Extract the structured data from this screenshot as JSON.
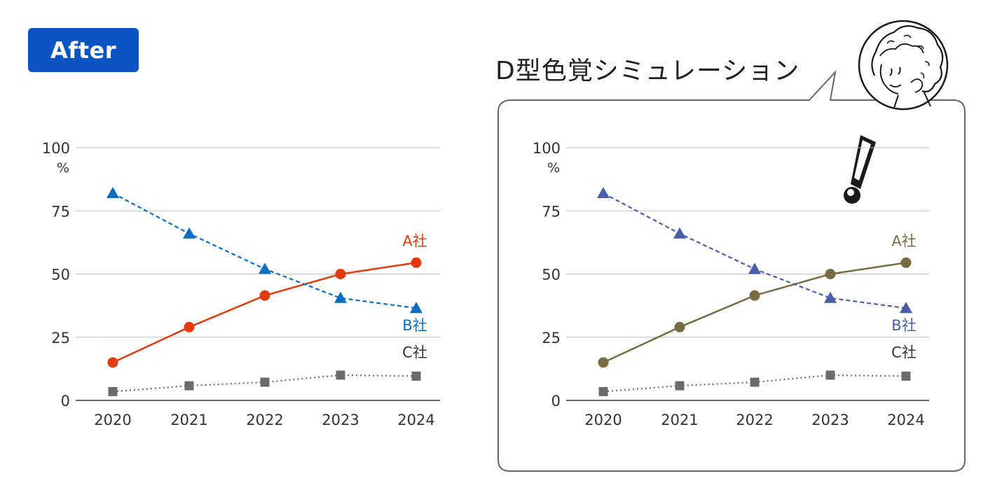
{
  "badge": {
    "label": "After"
  },
  "simulation_title": "D型色覚シミュレーション",
  "chart_data": [
    {
      "type": "line",
      "variant": "original",
      "categories": [
        "2020",
        "2021",
        "2022",
        "2023",
        "2024"
      ],
      "ylim": [
        0,
        100
      ],
      "yticks": [
        "0",
        "25",
        "50",
        "75",
        "100"
      ],
      "yunit": "%",
      "grid": true,
      "series": [
        {
          "name": "A社",
          "values": [
            15,
            29,
            41.5,
            50,
            54.5
          ],
          "color": "#e03c10",
          "marker": "circle",
          "dash": "solid"
        },
        {
          "name": "B社",
          "values": [
            82,
            66,
            52,
            40.5,
            36.5
          ],
          "color": "#0a6ec2",
          "marker": "triangle",
          "dash": "dashed"
        },
        {
          "name": "C社",
          "values": [
            3.5,
            5.8,
            7.2,
            10,
            9.6
          ],
          "color": "#6b6b6b",
          "label_color": "#333333",
          "marker": "square",
          "dash": "dotted"
        }
      ]
    },
    {
      "type": "line",
      "variant": "D-type color vision simulation",
      "categories": [
        "2020",
        "2021",
        "2022",
        "2023",
        "2024"
      ],
      "ylim": [
        0,
        100
      ],
      "yticks": [
        "0",
        "25",
        "50",
        "75",
        "100"
      ],
      "yunit": "%",
      "grid": true,
      "series": [
        {
          "name": "A社",
          "values": [
            15,
            29,
            41.5,
            50,
            54.5
          ],
          "color": "#786c45",
          "marker": "circle",
          "dash": "solid"
        },
        {
          "name": "B社",
          "values": [
            82,
            66,
            52,
            40.5,
            36.5
          ],
          "color": "#4a5ea8",
          "marker": "triangle",
          "dash": "dashed"
        },
        {
          "name": "C社",
          "values": [
            3.5,
            5.8,
            7.2,
            10,
            9.6
          ],
          "color": "#6b6b6b",
          "label_color": "#333333",
          "marker": "square",
          "dash": "dotted"
        }
      ]
    }
  ]
}
